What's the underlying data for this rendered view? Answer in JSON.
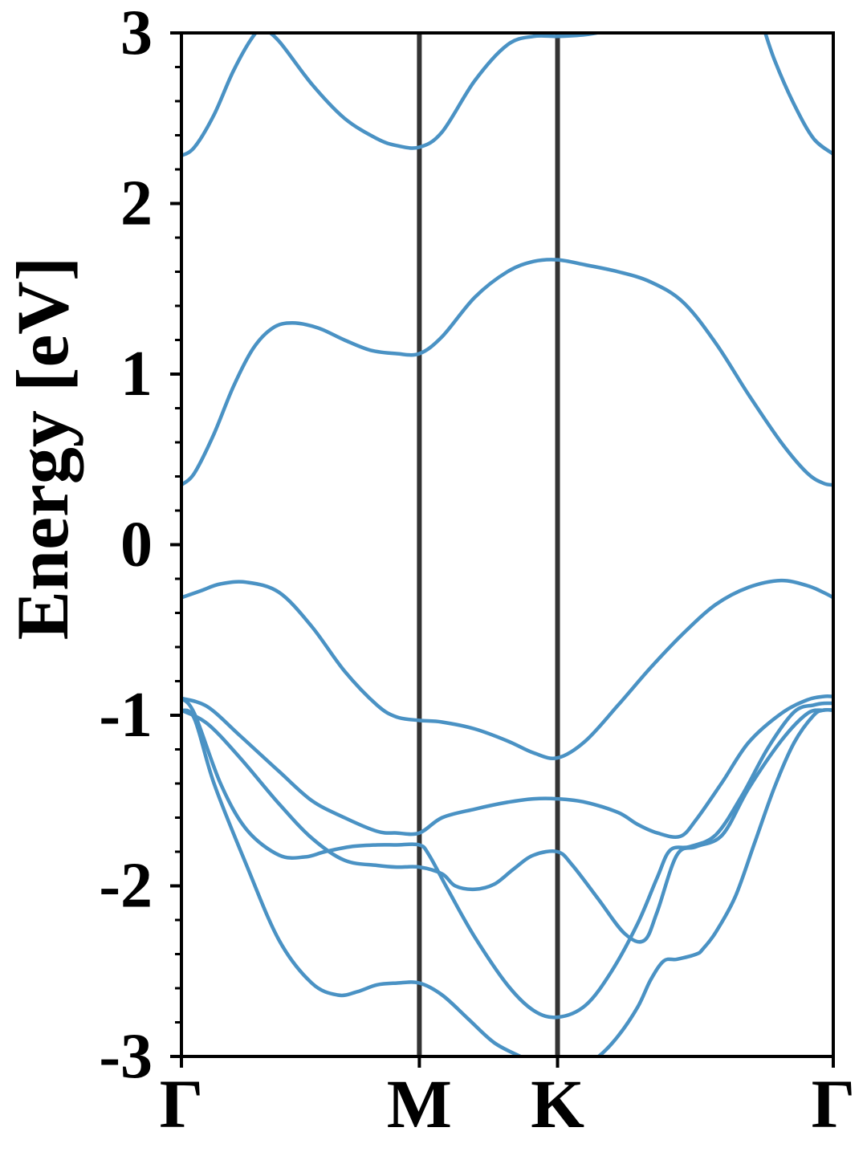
{
  "chart_data": {
    "type": "line",
    "title": "",
    "xlabel": "",
    "ylabel": "Energy [eV]",
    "ylim": [
      -3,
      3
    ],
    "yticks": [
      -3,
      -2,
      -1,
      0,
      1,
      2,
      3
    ],
    "ytick_labels": [
      "-3",
      "-2",
      "-1",
      "0",
      "1",
      "2",
      "3"
    ],
    "yminor_step": 0.2,
    "x_range": [
      0,
      1
    ],
    "kpoints": [
      {
        "label": "Γ",
        "x": 0.0
      },
      {
        "label": "M",
        "x": 0.365
      },
      {
        "label": "K",
        "x": 0.577
      },
      {
        "label": "Γ",
        "x": 1.0
      }
    ],
    "kpoint_line_color": "#333333",
    "band_color": "#4a92c4",
    "grid": false,
    "legend": "none",
    "series": [
      {
        "x": [
          0,
          0.02,
          0.05,
          0.08,
          0.11,
          0.125,
          0.15,
          0.2,
          0.25,
          0.3,
          0.33,
          0.365,
          0.4,
          0.45,
          0.5,
          0.54,
          0.577,
          0.62,
          0.65,
          0.66
        ],
        "y": [
          2.28,
          2.33,
          2.52,
          2.78,
          2.98,
          3.02,
          2.95,
          2.7,
          2.5,
          2.38,
          2.34,
          2.33,
          2.42,
          2.72,
          2.93,
          2.98,
          2.98,
          2.99,
          3.01,
          3.02
        ]
      },
      {
        "x": [
          0.894,
          0.91,
          0.94,
          0.97,
          1.0
        ],
        "y": [
          3.02,
          2.84,
          2.58,
          2.38,
          2.29
        ]
      },
      {
        "x": [
          0,
          0.02,
          0.05,
          0.08,
          0.11,
          0.14,
          0.17,
          0.21,
          0.25,
          0.29,
          0.33,
          0.365,
          0.4,
          0.45,
          0.5,
          0.54,
          0.577,
          0.62,
          0.67,
          0.72,
          0.77,
          0.82,
          0.87,
          0.92,
          0.96,
          0.985,
          1.0
        ],
        "y": [
          0.35,
          0.42,
          0.65,
          0.93,
          1.15,
          1.27,
          1.3,
          1.27,
          1.2,
          1.14,
          1.12,
          1.12,
          1.22,
          1.45,
          1.6,
          1.66,
          1.67,
          1.64,
          1.6,
          1.54,
          1.42,
          1.18,
          0.88,
          0.6,
          0.42,
          0.36,
          0.35
        ]
      },
      {
        "x": [
          0,
          0.03,
          0.06,
          0.1,
          0.15,
          0.2,
          0.25,
          0.3,
          0.33,
          0.365,
          0.4,
          0.45,
          0.5,
          0.54,
          0.577,
          0.62,
          0.67,
          0.72,
          0.77,
          0.82,
          0.87,
          0.92,
          0.96,
          0.985,
          1.0
        ],
        "y": [
          -0.31,
          -0.27,
          -0.23,
          -0.22,
          -0.28,
          -0.48,
          -0.74,
          -0.94,
          -1.01,
          -1.03,
          -1.04,
          -1.08,
          -1.15,
          -1.22,
          -1.25,
          -1.15,
          -0.94,
          -0.72,
          -0.52,
          -0.35,
          -0.25,
          -0.21,
          -0.24,
          -0.28,
          -0.31
        ]
      },
      {
        "x": [
          0,
          0.04,
          0.09,
          0.15,
          0.2,
          0.25,
          0.3,
          0.33,
          0.365,
          0.4,
          0.45,
          0.5,
          0.54,
          0.577,
          0.62,
          0.67,
          0.7,
          0.73,
          0.765,
          0.79,
          0.83,
          0.87,
          0.92,
          0.96,
          0.985,
          1.0
        ],
        "y": [
          -0.9,
          -0.95,
          -1.12,
          -1.33,
          -1.5,
          -1.6,
          -1.68,
          -1.69,
          -1.69,
          -1.6,
          -1.55,
          -1.51,
          -1.49,
          -1.49,
          -1.51,
          -1.57,
          -1.64,
          -1.69,
          -1.71,
          -1.61,
          -1.39,
          -1.16,
          -0.99,
          -0.91,
          -0.89,
          -0.89
        ]
      },
      {
        "x": [
          0,
          0.04,
          0.09,
          0.15,
          0.2,
          0.25,
          0.3,
          0.33,
          0.365,
          0.4,
          0.42,
          0.45,
          0.48,
          0.51,
          0.54,
          0.577,
          0.6,
          0.64,
          0.68,
          0.71,
          0.73,
          0.76,
          0.79,
          0.83,
          0.87,
          0.92,
          0.96,
          0.985,
          1.0
        ],
        "y": [
          -0.97,
          -1.05,
          -1.25,
          -1.52,
          -1.72,
          -1.85,
          -1.88,
          -1.89,
          -1.89,
          -1.93,
          -2.0,
          -2.02,
          -1.99,
          -1.9,
          -1.82,
          -1.8,
          -1.88,
          -2.08,
          -2.28,
          -2.32,
          -2.15,
          -1.82,
          -1.77,
          -1.7,
          -1.43,
          -1.15,
          -0.99,
          -0.97,
          -0.97
        ]
      },
      {
        "x": [
          0,
          0.02,
          0.06,
          0.1,
          0.15,
          0.19,
          0.22,
          0.26,
          0.3,
          0.33,
          0.365,
          0.38,
          0.41,
          0.45,
          0.5,
          0.54,
          0.577,
          0.62,
          0.66,
          0.7,
          0.73,
          0.75,
          0.78,
          0.82,
          0.86,
          0.9,
          0.94,
          0.97,
          0.985,
          1.0
        ],
        "y": [
          -0.9,
          -0.99,
          -1.4,
          -1.67,
          -1.82,
          -1.83,
          -1.8,
          -1.77,
          -1.76,
          -1.76,
          -1.76,
          -1.82,
          -2.03,
          -2.3,
          -2.58,
          -2.73,
          -2.77,
          -2.7,
          -2.5,
          -2.22,
          -1.95,
          -1.79,
          -1.77,
          -1.7,
          -1.47,
          -1.19,
          -0.98,
          -0.94,
          -0.93,
          -0.93
        ]
      },
      {
        "x": [
          0,
          0.02,
          0.05,
          0.1,
          0.15,
          0.2,
          0.24,
          0.27,
          0.3,
          0.33,
          0.365,
          0.4,
          0.44,
          0.48,
          0.52,
          0.528
        ],
        "y": [
          -0.97,
          -1.02,
          -1.4,
          -1.88,
          -2.32,
          -2.57,
          -2.64,
          -2.62,
          -2.58,
          -2.57,
          -2.57,
          -2.64,
          -2.78,
          -2.92,
          -3.0,
          -3.02
        ]
      },
      {
        "x": [
          0.625,
          0.64,
          0.67,
          0.7,
          0.72,
          0.74,
          0.76,
          0.79,
          0.8,
          0.82,
          0.85,
          0.88,
          0.91,
          0.94,
          0.97,
          0.985,
          1.0
        ],
        "y": [
          -3.02,
          -3.0,
          -2.88,
          -2.71,
          -2.55,
          -2.44,
          -2.43,
          -2.4,
          -2.37,
          -2.27,
          -2.06,
          -1.74,
          -1.42,
          -1.16,
          -1.0,
          -0.97,
          -0.97
        ]
      }
    ]
  }
}
